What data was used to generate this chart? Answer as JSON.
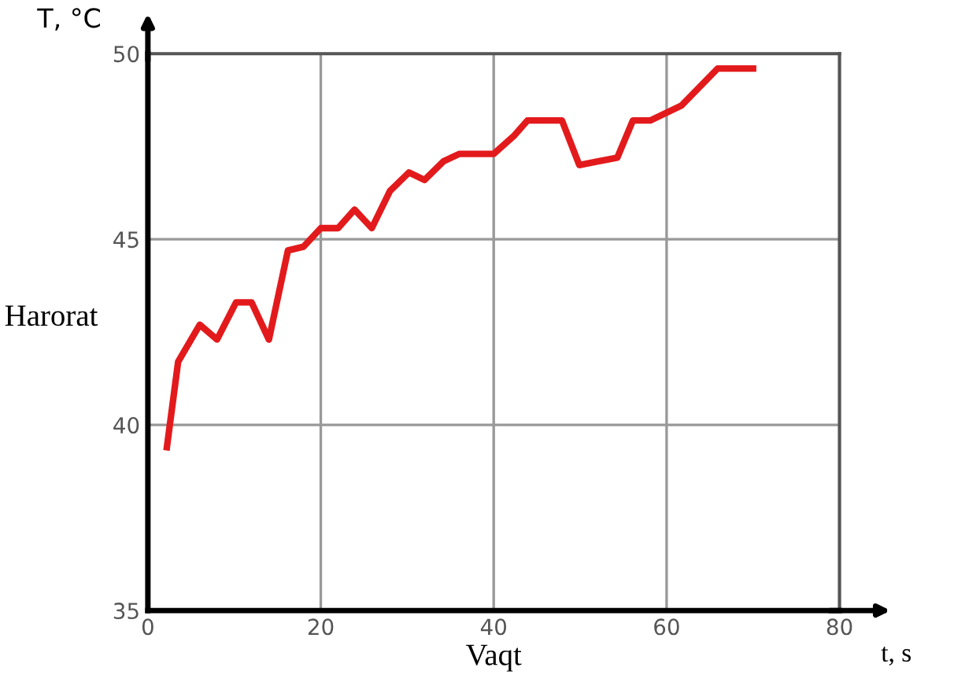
{
  "chart_data": {
    "type": "line",
    "xlabel": "Vaqt",
    "ylabel": "Harorat",
    "annotations": [
      "T, °C",
      "t, s"
    ],
    "x": [
      2.2,
      3.5,
      6.0,
      8.0,
      10.2,
      12.0,
      14.0,
      16.2,
      18.0,
      20.0,
      22.0,
      23.9,
      25.9,
      28.0,
      30.2,
      32.0,
      34.2,
      36.0,
      40.0,
      42.4,
      43.9,
      47.9,
      49.9,
      54.3,
      56.1,
      58.1,
      61.7,
      65.9,
      70.0
    ],
    "series": [
      {
        "color": "#e31a1c",
        "values": [
          39.4,
          41.7,
          42.7,
          42.3,
          43.3,
          43.3,
          42.3,
          44.7,
          44.8,
          45.3,
          45.3,
          45.8,
          45.3,
          46.3,
          46.8,
          46.6,
          47.1,
          47.3,
          47.3,
          47.8,
          48.2,
          48.2,
          47.0,
          47.2,
          48.2,
          48.2,
          48.6,
          49.6,
          49.6
        ]
      }
    ],
    "xlim": [
      0,
      80
    ],
    "ylim": [
      35,
      50
    ],
    "xticks": [
      0,
      20,
      40,
      60,
      80
    ],
    "yticks": [
      35,
      40,
      45,
      50
    ],
    "grid": true,
    "line_style": "solid",
    "marker": "none",
    "legend": false
  }
}
